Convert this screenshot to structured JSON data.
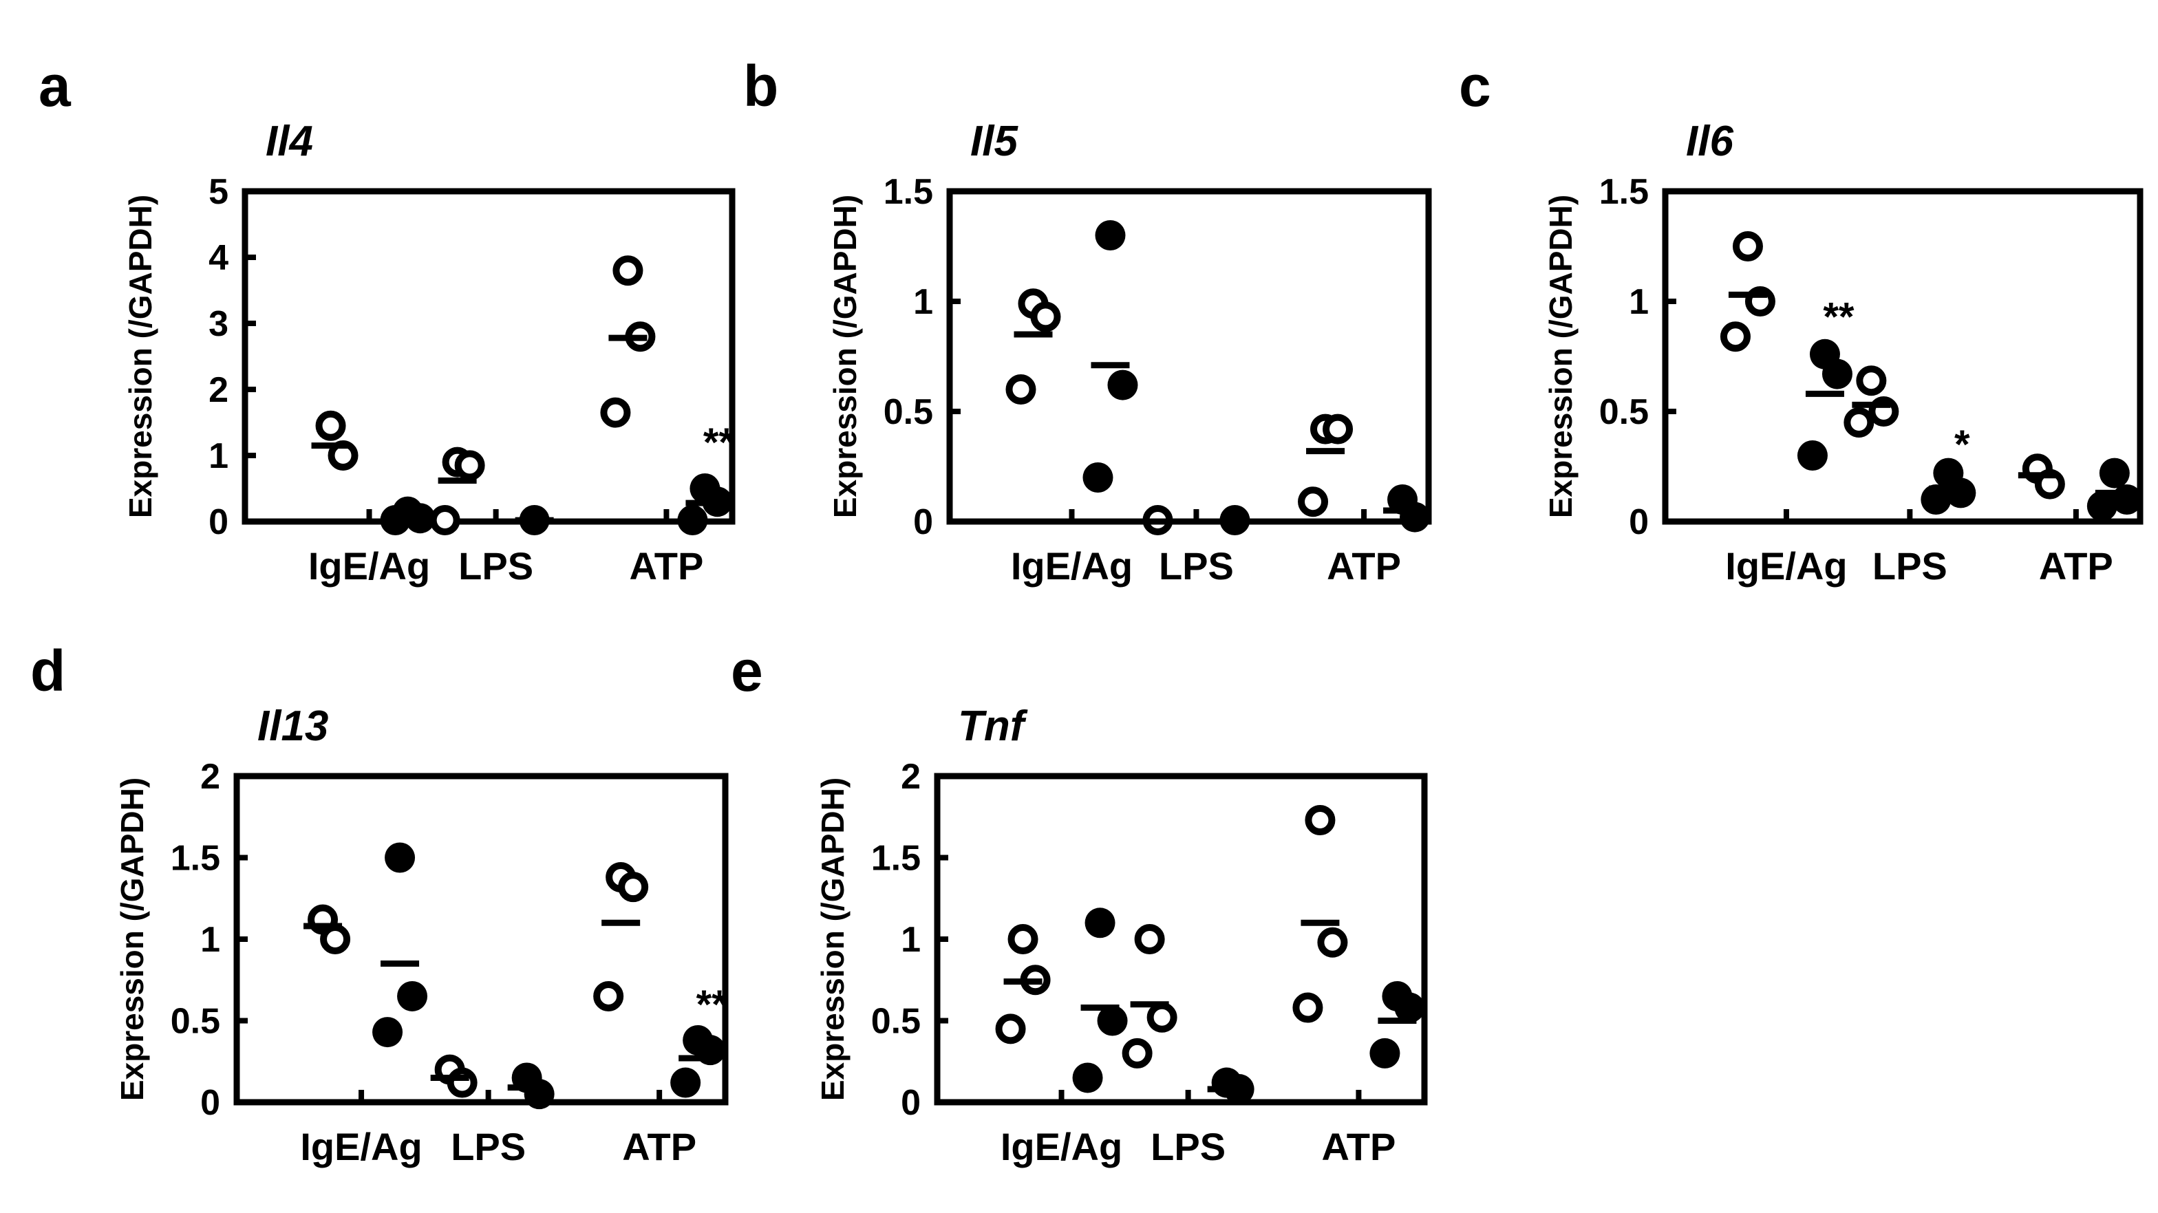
{
  "chart_data": [
    {
      "panel": "a",
      "title": "Il4",
      "type": "scatter",
      "ylabel": "Expression (/GAPDH)",
      "ylim": [
        0,
        5
      ],
      "yticks": [
        "0",
        "1",
        "2",
        "3",
        "4",
        "5"
      ],
      "categories": [
        "IgE/Ag",
        "LPS",
        "ATP"
      ],
      "series": [
        {
          "marker": "open",
          "points": [
            [
              0,
              1.45
            ],
            [
              0,
              1.0
            ],
            [
              1,
              0.9
            ],
            [
              1,
              0.85
            ],
            [
              1,
              0.02
            ],
            [
              2,
              3.8
            ],
            [
              2,
              2.8
            ],
            [
              2,
              1.65
            ]
          ],
          "means": [
            1.15,
            0.62,
            2.78
          ]
        },
        {
          "marker": "filled",
          "points": [
            [
              0,
              0.15
            ],
            [
              0,
              0.05
            ],
            [
              0,
              0.0
            ],
            [
              1,
              0.0
            ],
            [
              2,
              0.5
            ],
            [
              2,
              0.3
            ],
            [
              2,
              0.02
            ]
          ],
          "means": [
            0.12,
            0.02,
            0.28
          ]
        }
      ],
      "annotations": [
        {
          "cat": 2,
          "y": 1.2,
          "text": "**"
        }
      ]
    },
    {
      "panel": "b",
      "title": "Il5",
      "type": "scatter",
      "ylabel": "Expression (/GAPDH)",
      "ylim": [
        0,
        1.5
      ],
      "yticks": [
        "0",
        "0.5",
        "1",
        "1.5"
      ],
      "categories": [
        "IgE/Ag",
        "LPS",
        "ATP"
      ],
      "series": [
        {
          "marker": "open",
          "points": [
            [
              0,
              0.99
            ],
            [
              0,
              0.93
            ],
            [
              0,
              0.6
            ],
            [
              1,
              0.0
            ],
            [
              2,
              0.42
            ],
            [
              2,
              0.42
            ],
            [
              2,
              0.09
            ]
          ],
          "means": [
            0.85,
            0.0,
            0.32
          ]
        },
        {
          "marker": "filled",
          "points": [
            [
              0,
              1.3
            ],
            [
              0,
              0.62
            ],
            [
              0,
              0.2
            ],
            [
              1,
              0.0
            ],
            [
              2,
              0.1
            ],
            [
              2,
              0.02
            ]
          ],
          "means": [
            0.71,
            0.0,
            0.05
          ]
        }
      ],
      "annotations": []
    },
    {
      "panel": "c",
      "title": "Il6",
      "type": "scatter",
      "ylabel": "Expression (/GAPDH)",
      "ylim": [
        0,
        1.5
      ],
      "yticks": [
        "0",
        "0.5",
        "1",
        "1.5"
      ],
      "categories": [
        "IgE/Ag",
        "LPS",
        "ATP"
      ],
      "series": [
        {
          "marker": "open",
          "points": [
            [
              0,
              1.25
            ],
            [
              0,
              1.0
            ],
            [
              0,
              0.84
            ],
            [
              1,
              0.64
            ],
            [
              1,
              0.5
            ],
            [
              1,
              0.45
            ],
            [
              2,
              0.24
            ],
            [
              2,
              0.17
            ]
          ],
          "means": [
            1.03,
            0.53,
            0.21
          ]
        },
        {
          "marker": "filled",
          "points": [
            [
              0,
              0.76
            ],
            [
              0,
              0.67
            ],
            [
              0,
              0.3
            ],
            [
              1,
              0.22
            ],
            [
              1,
              0.13
            ],
            [
              1,
              0.1
            ],
            [
              2,
              0.22
            ],
            [
              2,
              0.1
            ],
            [
              2,
              0.07
            ]
          ],
          "means": [
            0.58,
            0.15,
            0.13
          ]
        }
      ],
      "annotations": [
        {
          "cat": 0,
          "y": 0.93,
          "text": "**"
        },
        {
          "cat": 1,
          "y": 0.35,
          "text": "*"
        }
      ]
    },
    {
      "panel": "d",
      "title": "Il13",
      "type": "scatter",
      "ylabel": "Expression (/GAPDH)",
      "ylim": [
        0,
        2
      ],
      "yticks": [
        "0",
        "0.5",
        "1",
        "1.5",
        "2"
      ],
      "categories": [
        "IgE/Ag",
        "LPS",
        "ATP"
      ],
      "series": [
        {
          "marker": "open",
          "points": [
            [
              0,
              1.12
            ],
            [
              0,
              1.0
            ],
            [
              1,
              0.2
            ],
            [
              1,
              0.12
            ],
            [
              2,
              1.38
            ],
            [
              2,
              1.32
            ],
            [
              2,
              0.65
            ]
          ],
          "means": [
            1.08,
            0.15,
            1.1
          ]
        },
        {
          "marker": "filled",
          "points": [
            [
              0,
              1.5
            ],
            [
              0,
              0.65
            ],
            [
              0,
              0.43
            ],
            [
              1,
              0.15
            ],
            [
              1,
              0.05
            ],
            [
              2,
              0.38
            ],
            [
              2,
              0.32
            ],
            [
              2,
              0.12
            ]
          ],
          "means": [
            0.85,
            0.09,
            0.27
          ]
        }
      ],
      "annotations": [
        {
          "cat": 2,
          "y": 0.6,
          "text": "**"
        }
      ]
    },
    {
      "panel": "e",
      "title": "Tnf",
      "type": "scatter",
      "ylabel": "Expression (/GAPDH)",
      "ylim": [
        0,
        2
      ],
      "yticks": [
        "0",
        "0.5",
        "1",
        "1.5",
        "2"
      ],
      "categories": [
        "IgE/Ag",
        "LPS",
        "ATP"
      ],
      "series": [
        {
          "marker": "open",
          "points": [
            [
              0,
              1.0
            ],
            [
              0,
              0.75
            ],
            [
              0,
              0.45
            ],
            [
              1,
              1.0
            ],
            [
              1,
              0.52
            ],
            [
              1,
              0.3
            ],
            [
              2,
              1.73
            ],
            [
              2,
              0.98
            ],
            [
              2,
              0.58
            ]
          ],
          "means": [
            0.74,
            0.6,
            1.1
          ]
        },
        {
          "marker": "filled",
          "points": [
            [
              0,
              1.1
            ],
            [
              0,
              0.5
            ],
            [
              0,
              0.15
            ],
            [
              1,
              0.12
            ],
            [
              1,
              0.08
            ],
            [
              2,
              0.65
            ],
            [
              2,
              0.58
            ],
            [
              2,
              0.3
            ]
          ],
          "means": [
            0.58,
            0.08,
            0.5
          ]
        }
      ],
      "annotations": []
    }
  ]
}
